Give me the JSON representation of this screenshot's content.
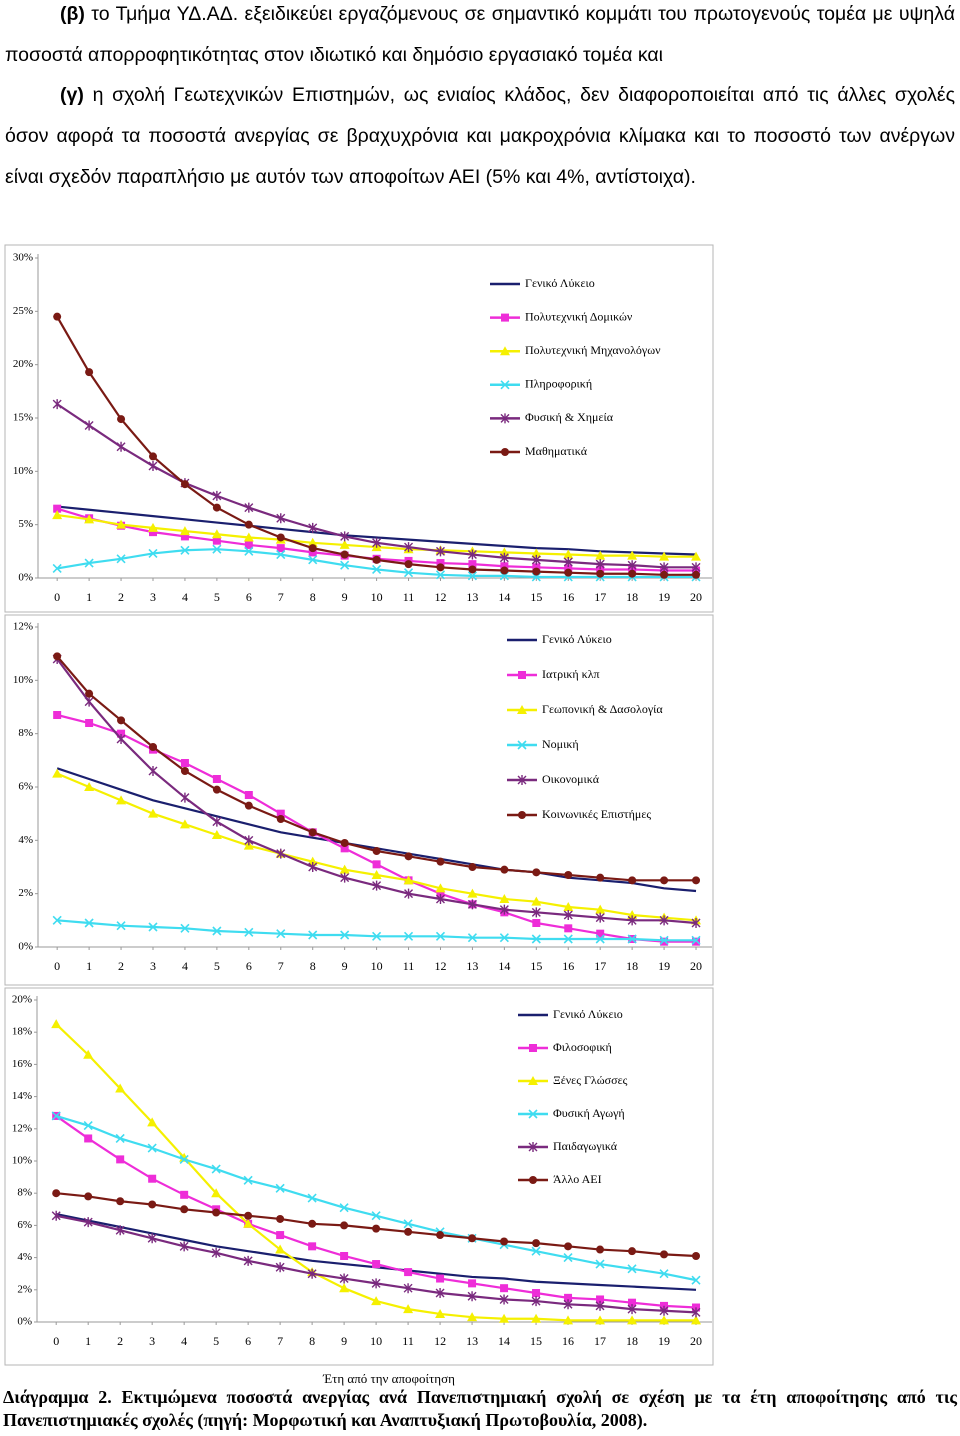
{
  "paragraphs": [
    {
      "label": "(β)",
      "text": "το Τμήμα ΥΔ.ΑΔ. εξειδικεύει εργαζόμενους σε σημαντικό κομμάτι του πρωτογενούς τομέα με υψηλά ποσοστά απορροφητικότητας στον ιδιωτικό και δημόσιο εργασιακό τομέα και"
    },
    {
      "label": "(γ)",
      "text": "η σχολή Γεωτεχνικών Επιστημών, ως ενιαίος κλάδος, δεν διαφοροποιείται από τις άλλες σχολές όσον αφορά τα ποσοστά ανεργίας σε βραχυχρόνια και μακροχρόνια κλίμακα και το ποσοστό των ανέργων είναι σχεδόν παραπλήσιο με αυτόν των αποφοίτων ΑΕΙ (5% και 4%, αντίστοιχα)."
    }
  ],
  "chart_data": [
    {
      "type": "line",
      "x": [
        0,
        1,
        2,
        3,
        4,
        5,
        6,
        7,
        8,
        9,
        10,
        11,
        12,
        13,
        14,
        15,
        16,
        17,
        18,
        19,
        20
      ],
      "xlim": [
        -0.6,
        20.5
      ],
      "xticks": [
        0,
        1,
        2,
        3,
        4,
        5,
        6,
        7,
        8,
        9,
        10,
        11,
        12,
        13,
        14,
        15,
        16,
        17,
        18,
        19,
        20
      ],
      "ylim": [
        0,
        30
      ],
      "yticks": [
        {
          "value": 0,
          "label": "0%"
        },
        {
          "value": 5,
          "label": "5%"
        },
        {
          "value": 10,
          "label": "10%"
        },
        {
          "value": 15,
          "label": "15%"
        },
        {
          "value": 20,
          "label": "20%"
        },
        {
          "value": 25,
          "label": "25%"
        },
        {
          "value": 30,
          "label": "30%"
        }
      ],
      "legend": "upper right",
      "series": [
        {
          "name": "Γενικό Λύκειο",
          "color": "#1a1f6e",
          "marker": "none",
          "values": [
            6.7,
            6.4,
            6.1,
            5.8,
            5.5,
            5.2,
            4.9,
            4.6,
            4.3,
            4.0,
            3.8,
            3.6,
            3.4,
            3.2,
            3.0,
            2.8,
            2.7,
            2.5,
            2.4,
            2.3,
            2.2
          ]
        },
        {
          "name": "Πολυτεχνική Δομικών",
          "color": "#ee2dd8",
          "marker": "square",
          "values": [
            6.5,
            5.6,
            4.9,
            4.3,
            3.9,
            3.5,
            3.1,
            2.8,
            2.4,
            2.1,
            1.8,
            1.6,
            1.4,
            1.3,
            1.1,
            1.0,
            0.9,
            0.8,
            0.8,
            0.7,
            0.7
          ]
        },
        {
          "name": "Πολυτεχνική Μηχανολόγων",
          "color": "#f5f000",
          "marker": "triangle",
          "values": [
            5.9,
            5.5,
            5.0,
            4.7,
            4.4,
            4.1,
            3.8,
            3.6,
            3.3,
            3.1,
            2.9,
            2.7,
            2.6,
            2.5,
            2.4,
            2.3,
            2.2,
            2.1,
            2.1,
            2.0,
            2.0
          ]
        },
        {
          "name": "Πληροφορική",
          "color": "#3fdcf0",
          "marker": "x",
          "values": [
            0.9,
            1.4,
            1.8,
            2.3,
            2.6,
            2.7,
            2.5,
            2.2,
            1.7,
            1.2,
            0.8,
            0.5,
            0.3,
            0.2,
            0.2,
            0.1,
            0.1,
            0.1,
            0.1,
            0.1,
            0.1
          ]
        },
        {
          "name": "Φυσική & Χημεία",
          "color": "#7a2a7e",
          "marker": "asterisk",
          "values": [
            16.3,
            14.3,
            12.3,
            10.5,
            8.9,
            7.7,
            6.6,
            5.6,
            4.7,
            3.9,
            3.3,
            2.9,
            2.5,
            2.2,
            1.9,
            1.7,
            1.5,
            1.3,
            1.2,
            1.0,
            1.0
          ]
        },
        {
          "name": "Μαθηματικά",
          "color": "#7a1a14",
          "marker": "circle",
          "values": [
            24.5,
            19.3,
            14.9,
            11.4,
            8.8,
            6.6,
            5.0,
            3.8,
            2.8,
            2.2,
            1.7,
            1.3,
            1.0,
            0.8,
            0.7,
            0.6,
            0.5,
            0.4,
            0.4,
            0.3,
            0.3
          ]
        }
      ]
    },
    {
      "type": "line",
      "x": [
        0,
        1,
        2,
        3,
        4,
        5,
        6,
        7,
        8,
        9,
        10,
        11,
        12,
        13,
        14,
        15,
        16,
        17,
        18,
        19,
        20
      ],
      "xlim": [
        -0.6,
        20.5
      ],
      "xticks": [
        0,
        1,
        2,
        3,
        4,
        5,
        6,
        7,
        8,
        9,
        10,
        11,
        12,
        13,
        14,
        15,
        16,
        17,
        18,
        19,
        20
      ],
      "ylim": [
        0,
        12
      ],
      "yticks": [
        {
          "value": 0,
          "label": "0%"
        },
        {
          "value": 2,
          "label": "2%"
        },
        {
          "value": 4,
          "label": "4%"
        },
        {
          "value": 6,
          "label": "6%"
        },
        {
          "value": 8,
          "label": "8%"
        },
        {
          "value": 10,
          "label": "10%"
        },
        {
          "value": 12,
          "label": "12%"
        }
      ],
      "legend": "upper right",
      "series": [
        {
          "name": "Γενικό Λύκειο",
          "color": "#1a1f6e",
          "marker": "none",
          "values": [
            6.7,
            6.3,
            5.9,
            5.5,
            5.2,
            4.9,
            4.6,
            4.3,
            4.1,
            3.9,
            3.7,
            3.5,
            3.3,
            3.1,
            2.9,
            2.8,
            2.6,
            2.5,
            2.4,
            2.2,
            2.1
          ]
        },
        {
          "name": "Ιατρική κλπ",
          "color": "#ee2dd8",
          "marker": "square",
          "values": [
            8.7,
            8.4,
            8.0,
            7.4,
            6.9,
            6.3,
            5.7,
            5.0,
            4.3,
            3.7,
            3.1,
            2.5,
            2.0,
            1.6,
            1.3,
            0.9,
            0.7,
            0.5,
            0.3,
            0.2,
            0.2
          ]
        },
        {
          "name": "Γεωπονική & Δασολογία",
          "color": "#f5f000",
          "marker": "triangle",
          "values": [
            6.5,
            6.0,
            5.5,
            5.0,
            4.6,
            4.2,
            3.8,
            3.5,
            3.2,
            2.9,
            2.7,
            2.5,
            2.2,
            2.0,
            1.8,
            1.7,
            1.5,
            1.4,
            1.2,
            1.1,
            1.0
          ]
        },
        {
          "name": "Νομική",
          "color": "#3fdcf0",
          "marker": "x",
          "values": [
            1.0,
            0.9,
            0.8,
            0.75,
            0.7,
            0.6,
            0.55,
            0.5,
            0.45,
            0.45,
            0.4,
            0.4,
            0.4,
            0.35,
            0.35,
            0.3,
            0.3,
            0.3,
            0.3,
            0.25,
            0.25
          ]
        },
        {
          "name": "Οικονομικά",
          "color": "#7a2a7e",
          "marker": "asterisk",
          "values": [
            10.8,
            9.2,
            7.8,
            6.6,
            5.6,
            4.7,
            4.0,
            3.5,
            3.0,
            2.6,
            2.3,
            2.0,
            1.8,
            1.6,
            1.4,
            1.3,
            1.2,
            1.1,
            1.0,
            1.0,
            0.9
          ]
        },
        {
          "name": "Κοινωνικές Επιστήμες",
          "color": "#7a1a14",
          "marker": "circle",
          "values": [
            10.9,
            9.5,
            8.5,
            7.5,
            6.6,
            5.9,
            5.3,
            4.8,
            4.3,
            3.9,
            3.6,
            3.4,
            3.2,
            3.0,
            2.9,
            2.8,
            2.7,
            2.6,
            2.5,
            2.5,
            2.5
          ]
        }
      ]
    },
    {
      "type": "line",
      "x": [
        0,
        1,
        2,
        3,
        4,
        5,
        6,
        7,
        8,
        9,
        10,
        11,
        12,
        13,
        14,
        15,
        16,
        17,
        18,
        19,
        20
      ],
      "xlim": [
        -0.6,
        20.5
      ],
      "xticks": [
        0,
        1,
        2,
        3,
        4,
        5,
        6,
        7,
        8,
        9,
        10,
        11,
        12,
        13,
        14,
        15,
        16,
        17,
        18,
        19,
        20
      ],
      "xlabel": "Έτη από την αποφοίτηση",
      "ylim": [
        0,
        20
      ],
      "yticks": [
        {
          "value": 0,
          "label": "0%"
        },
        {
          "value": 2,
          "label": "2%"
        },
        {
          "value": 4,
          "label": "4%"
        },
        {
          "value": 6,
          "label": "6%"
        },
        {
          "value": 8,
          "label": "8%"
        },
        {
          "value": 10,
          "label": "10%"
        },
        {
          "value": 12,
          "label": "12%"
        },
        {
          "value": 14,
          "label": "14%"
        },
        {
          "value": 16,
          "label": "16%"
        },
        {
          "value": 18,
          "label": "18%"
        },
        {
          "value": 20,
          "label": "20%"
        }
      ],
      "legend": "upper right",
      "series": [
        {
          "name": "Γενικό Λύκειο",
          "color": "#1a1f6e",
          "marker": "none",
          "values": [
            6.7,
            6.3,
            5.9,
            5.5,
            5.1,
            4.7,
            4.4,
            4.1,
            3.8,
            3.6,
            3.4,
            3.2,
            3.0,
            2.8,
            2.7,
            2.5,
            2.4,
            2.3,
            2.2,
            2.1,
            2.0
          ]
        },
        {
          "name": "Φιλοσοφική",
          "color": "#ee2dd8",
          "marker": "square",
          "values": [
            12.8,
            11.4,
            10.1,
            8.9,
            7.9,
            7.0,
            6.1,
            5.4,
            4.7,
            4.1,
            3.6,
            3.1,
            2.7,
            2.4,
            2.1,
            1.8,
            1.5,
            1.4,
            1.2,
            1.0,
            0.9
          ]
        },
        {
          "name": "Ξένες Γλώσσες",
          "color": "#f5f000",
          "marker": "triangle",
          "values": [
            18.5,
            16.6,
            14.5,
            12.4,
            10.2,
            8.0,
            6.1,
            4.5,
            3.1,
            2.1,
            1.3,
            0.8,
            0.5,
            0.3,
            0.2,
            0.2,
            0.1,
            0.1,
            0.1,
            0.1,
            0.1
          ]
        },
        {
          "name": "Φυσική Αγωγή",
          "color": "#3fdcf0",
          "marker": "x",
          "values": [
            12.8,
            12.2,
            11.4,
            10.8,
            10.1,
            9.5,
            8.8,
            8.3,
            7.7,
            7.1,
            6.6,
            6.1,
            5.6,
            5.2,
            4.8,
            4.4,
            4.0,
            3.6,
            3.3,
            3.0,
            2.6
          ]
        },
        {
          "name": "Παιδαγωγικά",
          "color": "#7a2a7e",
          "marker": "asterisk",
          "values": [
            6.6,
            6.2,
            5.7,
            5.2,
            4.7,
            4.3,
            3.8,
            3.4,
            3.0,
            2.7,
            2.4,
            2.1,
            1.8,
            1.6,
            1.4,
            1.3,
            1.1,
            1.0,
            0.8,
            0.7,
            0.6
          ]
        },
        {
          "name": "Άλλο ΑΕΙ",
          "color": "#7a1a14",
          "marker": "circle",
          "values": [
            8.0,
            7.8,
            7.5,
            7.3,
            7.0,
            6.8,
            6.6,
            6.4,
            6.1,
            6.0,
            5.8,
            5.6,
            5.4,
            5.2,
            5.0,
            4.9,
            4.7,
            4.5,
            4.4,
            4.2,
            4.1
          ]
        }
      ]
    }
  ],
  "caption": {
    "label": "Διάγραμμα 2.",
    "text": "Εκτιμώμενα ποσοστά ανεργίας ανά Πανεπιστημιακή σχολή σε σχέση με τα έτη αποφοίτησης από τις Πανεπιστημιακές σχολές (πηγή: Μορφωτική και Αναπτυξιακή Πρωτοβουλία, 2008)."
  }
}
